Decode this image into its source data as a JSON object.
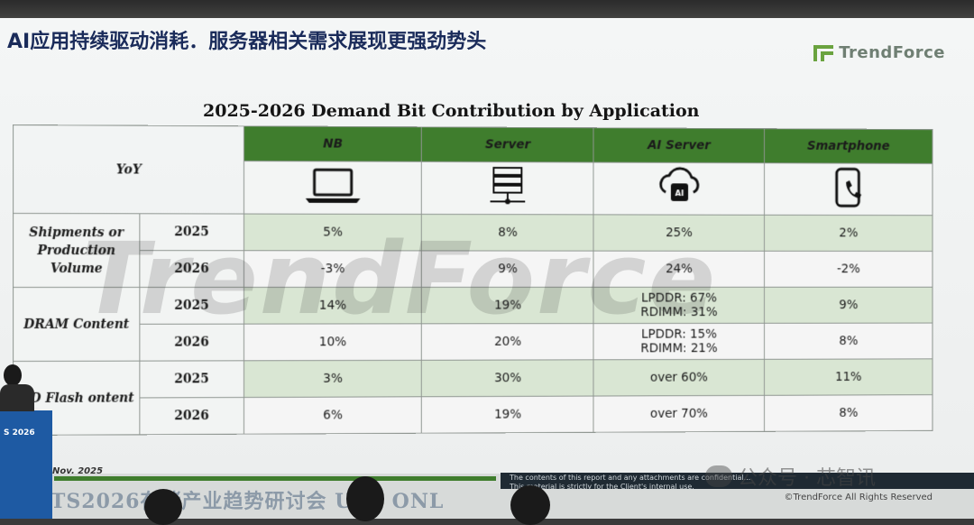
{
  "slide": {
    "headline": "AI应用持续驱动消耗．服务器相关需求展现更强劲势头",
    "brand": "TrendForce",
    "chart_title": "2025-2026 Demand Bit Contribution by Application",
    "watermark": "TrendForce",
    "footer_date": "Nov. 2025",
    "fine_print_1": "The contents of this report and any attachments are confidential...",
    "fine_print_2": "This material is strictly for the Client's internal use.",
    "rights": "©TrendForce All Rights Reserved",
    "banner": "TS2026存储产业趋势研讨会 USE ONL",
    "wechat": "公众号 · 芯智讯",
    "podium_text": "S 2026"
  },
  "chart_data": {
    "type": "table",
    "title": "2025-2026 Demand Bit Contribution by Application",
    "corner_label": "YoY",
    "columns": [
      {
        "name": "NB",
        "icon": "laptop-icon"
      },
      {
        "name": "Server",
        "icon": "server-rack-icon"
      },
      {
        "name": "AI Server",
        "icon": "ai-cloud-chip-icon"
      },
      {
        "name": "Smartphone",
        "icon": "smartphone-icon"
      }
    ],
    "groups": [
      {
        "label": "Shipments or Production Volume",
        "rows": [
          {
            "year": "2025",
            "values": [
              "5%",
              "8%",
              "25%",
              "2%"
            ]
          },
          {
            "year": "2026",
            "values": [
              "-3%",
              "9%",
              "24%",
              "-2%"
            ]
          }
        ]
      },
      {
        "label": "DRAM Content",
        "rows": [
          {
            "year": "2025",
            "values": [
              "14%",
              "19%",
              "LPDDR: 67%",
              "9%"
            ],
            "ai_server_line2": "RDIMM: 31%"
          },
          {
            "year": "2026",
            "values": [
              "10%",
              "20%",
              "LPDDR: 15%",
              "8%"
            ],
            "ai_server_line2": "RDIMM: 21%"
          }
        ]
      },
      {
        "label": "ND Flash ontent",
        "rows": [
          {
            "year": "2025",
            "values": [
              "3%",
              "30%",
              "over 60%",
              "11%"
            ]
          },
          {
            "year": "2026",
            "values": [
              "6%",
              "19%",
              "over 70%",
              "8%"
            ]
          }
        ]
      }
    ],
    "colors": {
      "header": "#3f7d2d",
      "year_2026_text": "#b52024",
      "row_2025_fill": "#d9e6d3"
    }
  }
}
